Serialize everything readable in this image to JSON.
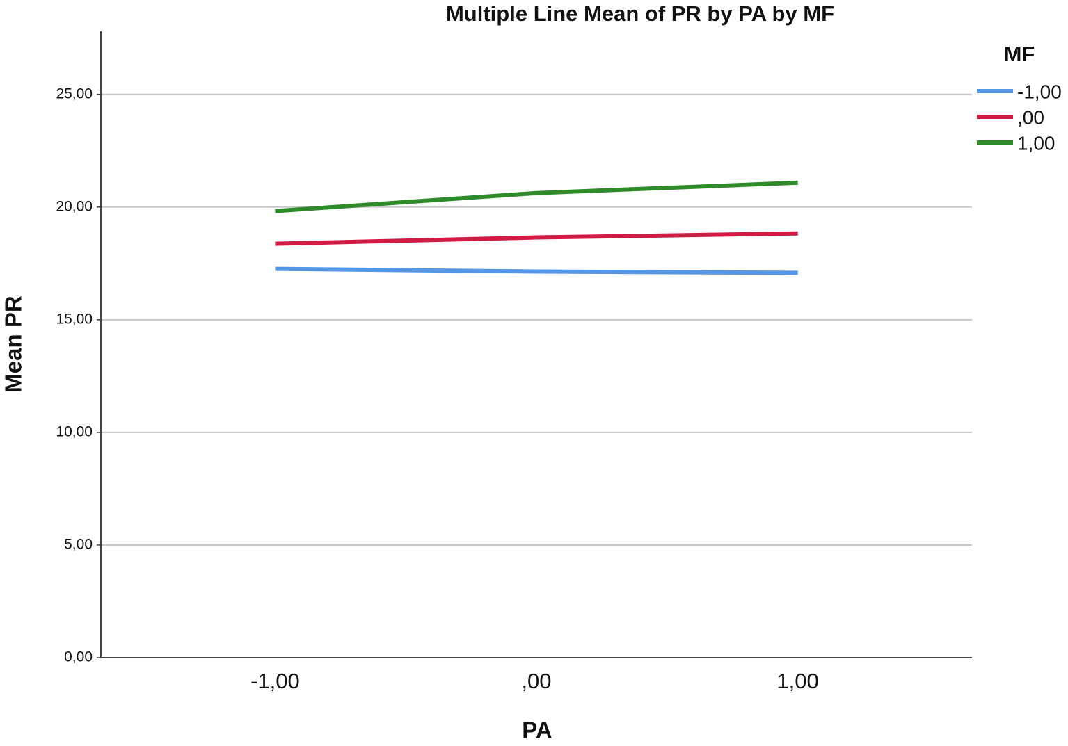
{
  "chart_data": {
    "type": "line",
    "title": "Multiple Line Mean of PR by PA by MF",
    "x_label": "PA",
    "y_label": "Mean PR",
    "legend_title": "MF",
    "legend_position": "right",
    "grid": true,
    "categories": [
      "-1,00",
      ",00",
      "1,00"
    ],
    "series": [
      {
        "name": "-1,00",
        "color": "#5596e6",
        "values": [
          17.26,
          17.14,
          17.08
        ]
      },
      {
        "name": ",00",
        "color": "#d01c45",
        "values": [
          18.37,
          18.65,
          18.83
        ]
      },
      {
        "name": "1,00",
        "color": "#2f8a2a",
        "values": [
          19.82,
          20.62,
          21.08
        ]
      }
    ],
    "ylim": [
      0,
      27.8
    ],
    "yticks": [
      {
        "value": 0,
        "label": "0,00"
      },
      {
        "value": 5,
        "label": "5,00"
      },
      {
        "value": 10,
        "label": "10,00"
      },
      {
        "value": 15,
        "label": "15,00"
      },
      {
        "value": 20,
        "label": "20,00"
      },
      {
        "value": 25,
        "label": "25,00"
      }
    ]
  }
}
